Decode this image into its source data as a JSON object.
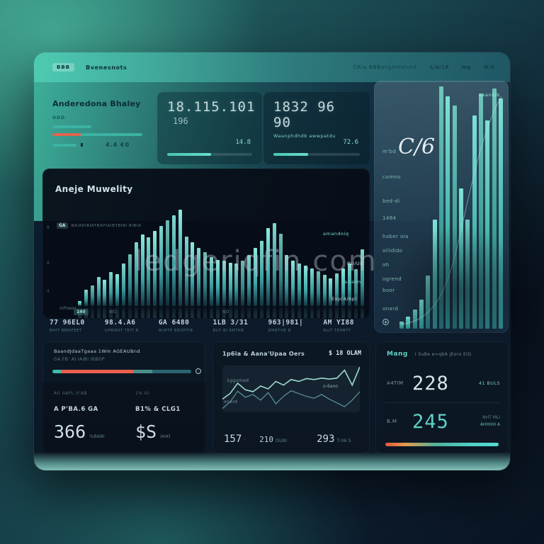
{
  "watermark": "ledgeriqfin.com",
  "colors": {
    "teal_accent": "#4fd1c5",
    "coral": "#e0644e",
    "header_teal": "#3aa896",
    "panel_dark": "#0b1726",
    "text_light": "#c7d9dd"
  },
  "header": {
    "logo_badge": "BBB",
    "brand": "Bvenesnots",
    "nav_title": "CRia BBBangamatutd",
    "nav_items": [
      "L/a/18",
      "mg",
      "O.0"
    ]
  },
  "cards": [
    {
      "title": "Anderedona Bhaley",
      "label": "ODD",
      "footnote": "4.4 €0"
    },
    {
      "value": "18.115.101",
      "sub": "196",
      "metric": "14.8",
      "progress_pct": 52
    },
    {
      "value": "1832 96 90",
      "sub": "Waanphdhdb awwpatdu",
      "metric": "72.6",
      "progress_pct": 40
    }
  ],
  "main_chart": {
    "title": "Aneje Muwelity",
    "legend_badge": "GA",
    "legend": "BAIAEIBIATBAPIAIBTBIBI BIBIA",
    "y_ticks": [
      "8",
      "8",
      "4"
    ],
    "x_label_left": "mPower",
    "x_badge": "140",
    "x_labels": [
      "WO",
      "NO"
    ],
    "annotations": [
      "amandoiq",
      "BU/UD",
      "airaim",
      "Exp(4/6p)"
    ]
  },
  "stats_row": [
    {
      "value": "77 96EL0",
      "label": "BHIT BBWFEET"
    },
    {
      "value": "98.4.A6",
      "label": "UPBIEST TEIT B"
    },
    {
      "value": "GA 6480",
      "label": "BUPTE BEOPTIB"
    },
    {
      "value": "1LB 3/31",
      "label": "BUT BI ENTHB"
    },
    {
      "value": "963|981|",
      "label": "JPRETHE B"
    },
    {
      "value": "AM YI88",
      "label": "BLIT TEHBTT"
    }
  ],
  "right_panel": {
    "corner_label": "aaanbib",
    "big_value": "C/6",
    "labels": [
      "m'bd",
      "cumno",
      "bed-di",
      "1464",
      "haber oia",
      "oilidido",
      "oh",
      "ogrend",
      "boor",
      "onard"
    ],
    "plus_icon": "+"
  },
  "panel_a": {
    "title": "BaandJdaaTgaaa 1Wm AGEAUBnd",
    "subtitle": "GA.FB: AI IAIBI IBBOP",
    "progress_segments": [
      {
        "pct": 6,
        "color": "#3fbda8"
      },
      {
        "pct": 52,
        "color": "#e8604c"
      },
      {
        "pct": 14,
        "color": "#4a8f8b"
      },
      {
        "pct": 28,
        "color": "#2a6570"
      }
    ],
    "columns": [
      {
        "caption": "AII IIAPL II'AB",
        "heading": "A P'BA.6 GA",
        "value": "366",
        "suffix": "%BABI"
      },
      {
        "caption": "1% GI",
        "heading": "B1% & CLG1",
        "value": "$S",
        "suffix": "IAIKI"
      }
    ]
  },
  "panel_b": {
    "title": "1p6ia & Aana'Upaa Oers",
    "value_right": "$ 18 OLAM",
    "series_labels": [
      "1ggumed",
      "onerd"
    ],
    "annotation": "o-6ano",
    "footer": [
      {
        "value": "157",
        "suffix": "'"
      },
      {
        "value": "210",
        "suffix": "DUBI"
      },
      {
        "value": "293",
        "suffix": "T-06 S"
      }
    ]
  },
  "panel_c": {
    "title": "Mang",
    "subtitle": "I SuBe e=qbA JEoro EIG",
    "rows": [
      {
        "label": "A4TIM",
        "value": "228",
        "note": "41 BULS"
      },
      {
        "label": "B.M",
        "value": "245",
        "note_line1": "NHT MLI",
        "note_line2": "AHHHH A"
      }
    ]
  },
  "chart_data": [
    {
      "type": "bar",
      "title": "Aneje Muwelity",
      "ylim": [
        0,
        100
      ],
      "grid": false,
      "legend_position": "top-left",
      "values": [
        5,
        17,
        21,
        30,
        27,
        35,
        33,
        44,
        54,
        66,
        74,
        71,
        78,
        83,
        89,
        94,
        100,
        72,
        66,
        60,
        56,
        51,
        48,
        47,
        45,
        44,
        47,
        53,
        60,
        68,
        81,
        86,
        75,
        53,
        47,
        44,
        42,
        39,
        36,
        32,
        29,
        34,
        39,
        44,
        38,
        59
      ],
      "x_labels": [
        "140",
        "WO",
        "NO"
      ]
    },
    {
      "type": "bar",
      "title": "C/6",
      "ylim": [
        0,
        100
      ],
      "grid": false,
      "values": [
        3,
        5,
        8,
        12,
        22,
        45,
        100,
        96,
        92,
        58,
        45,
        88,
        97,
        86,
        99,
        95
      ]
    },
    {
      "type": "line",
      "title": "1p6ia & Aana'Upaa Oers",
      "ylim": [
        0,
        100
      ],
      "grid": false,
      "series": [
        {
          "name": "1ggumed",
          "values": [
            28,
            40,
            62,
            48,
            44,
            56,
            50,
            66,
            58,
            70,
            66,
            72,
            70,
            73,
            71,
            73,
            90,
            58,
            97
          ]
        },
        {
          "name": "onerd",
          "values": [
            8,
            22,
            45,
            32,
            38,
            26,
            42,
            18,
            34,
            46,
            40,
            34,
            30,
            38,
            28,
            20,
            12,
            26,
            44
          ]
        }
      ]
    }
  ]
}
